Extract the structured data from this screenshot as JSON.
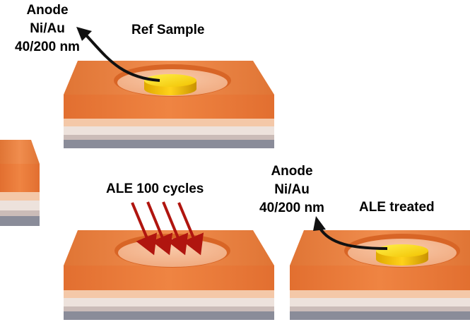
{
  "labels": {
    "anode_top": {
      "line1": "Anode",
      "line2": "Ni/Au",
      "line3": "40/200 nm"
    },
    "ref_sample": "Ref Sample",
    "ale_cycles": "ALE 100 cycles",
    "anode_bottom": {
      "line1": "Anode",
      "line2": "Ni/Au",
      "line3": "40/200 nm"
    },
    "ale_treated": "ALE treated"
  },
  "colors": {
    "top_layer": "#e8793a",
    "top_face": "#f0894a",
    "recess": "#f5b48e",
    "layer_peach": "#f6d1b5",
    "layer_light": "#f3e4dc",
    "layer_mid": "#d9c8c0",
    "layer_gray": "#8b8d99",
    "gold": "#f2c200",
    "arrow_red": "#b0150f",
    "arrow_black": "#111111"
  }
}
